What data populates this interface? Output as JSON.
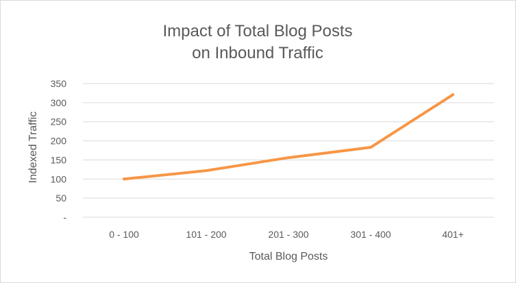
{
  "chart_data": {
    "type": "line",
    "title_lines": [
      "Impact of Total Blog Posts",
      "on Inbound Traffic"
    ],
    "xlabel": "Total Blog Posts",
    "ylabel": "Indexed Traffic",
    "categories": [
      "0 - 100",
      "101 - 200",
      "201 - 300",
      "301 - 400",
      "401+"
    ],
    "series": [
      {
        "values": [
          100,
          122,
          156,
          183,
          321
        ]
      }
    ],
    "ylim": [
      0,
      350
    ],
    "yticks": [
      0,
      50,
      100,
      150,
      200,
      250,
      300,
      350
    ],
    "ytick_labels": [
      "-",
      "50",
      "100",
      "150",
      "200",
      "250",
      "300",
      "350"
    ],
    "grid": true,
    "legend": "none",
    "line_color": "#f79646"
  }
}
